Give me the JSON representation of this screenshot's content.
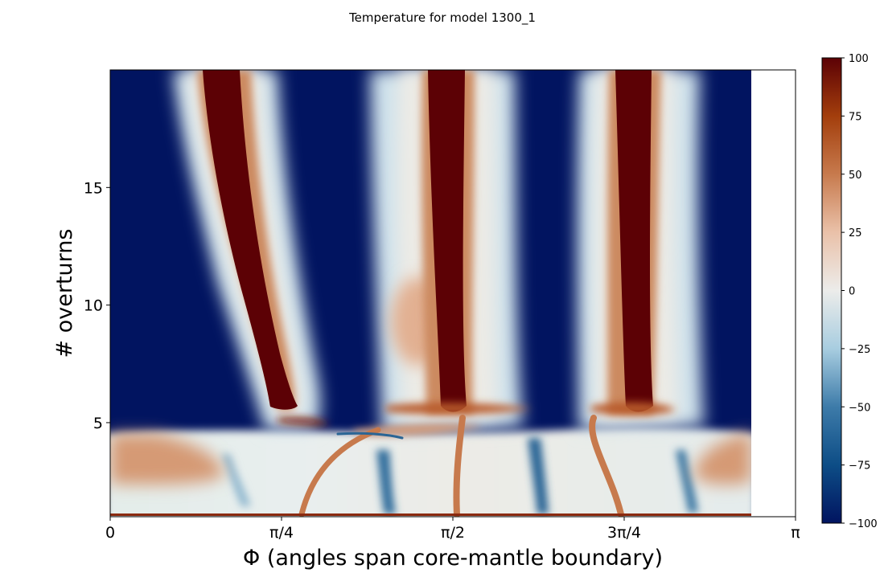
{
  "chart_data": {
    "type": "heatmap",
    "title": "Temperature for model 1300_1",
    "xlabel": "Φ (angles span core-mantle boundary)",
    "ylabel": "# overturns",
    "x_ticks": [
      "0",
      "π/4",
      "π/2",
      "3π/4",
      "π"
    ],
    "x_tick_values": [
      0,
      0.7854,
      1.5708,
      2.3562,
      3.1416
    ],
    "y_ticks": [
      "5",
      "10",
      "15"
    ],
    "y_tick_values": [
      5,
      10,
      15
    ],
    "xlim": [
      0,
      3.1416
    ],
    "ylim": [
      1,
      20
    ],
    "data_x_extent": [
      0,
      2.94
    ],
    "colorbar": {
      "ticks": [
        "100",
        "75",
        "50",
        "25",
        "0",
        "−25",
        "−50",
        "−75",
        "−100"
      ],
      "tick_values": [
        100,
        75,
        50,
        25,
        0,
        -25,
        -50,
        -75,
        -100
      ],
      "range": [
        -100,
        100
      ],
      "colormap": [
        "#011460",
        "#0d4d86",
        "#3d7ba9",
        "#a8cde0",
        "#ececea",
        "#eac1a9",
        "#c77a4d",
        "#a33e0c",
        "#5c0105"
      ]
    },
    "hot_plumes": [
      {
        "x_top": 0.5,
        "x_mid": 0.72,
        "x_base": 0.83,
        "y_base": 5.5
      },
      {
        "x_top": 1.55,
        "x_mid": 1.55,
        "x_base": 1.58,
        "y_base": 5.2
      },
      {
        "x_top": 2.35,
        "x_mid": 2.33,
        "x_base": 2.3,
        "y_base": 5.5
      }
    ],
    "warm_regions": [
      {
        "x": 1.45,
        "y": 8.5,
        "value": 35
      },
      {
        "x": 0.15,
        "y": 3.2,
        "value": 45
      },
      {
        "x": 2.85,
        "y": 3.3,
        "value": 45
      }
    ],
    "cold_background_value": -100,
    "lower_band_value": -10
  }
}
